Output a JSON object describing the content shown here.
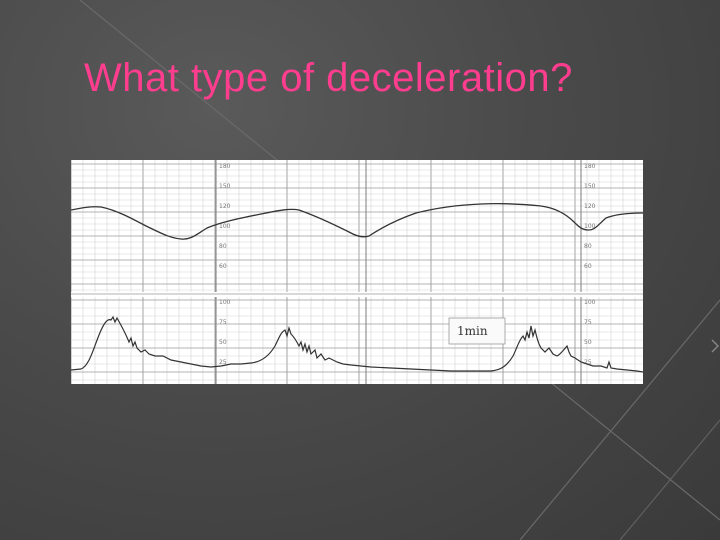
{
  "slide": {
    "title": "What type of deceleration?"
  },
  "tracing": {
    "fhr_scale_labels": [
      "180",
      "150",
      "120",
      "100",
      "80",
      "60"
    ],
    "uc_scale_labels": [
      "100",
      "75",
      "50",
      "25"
    ],
    "annotation": "1min",
    "colors": {
      "title": "#ff3d8f",
      "trace": "#333333",
      "grid": "#bfbfbf"
    }
  }
}
